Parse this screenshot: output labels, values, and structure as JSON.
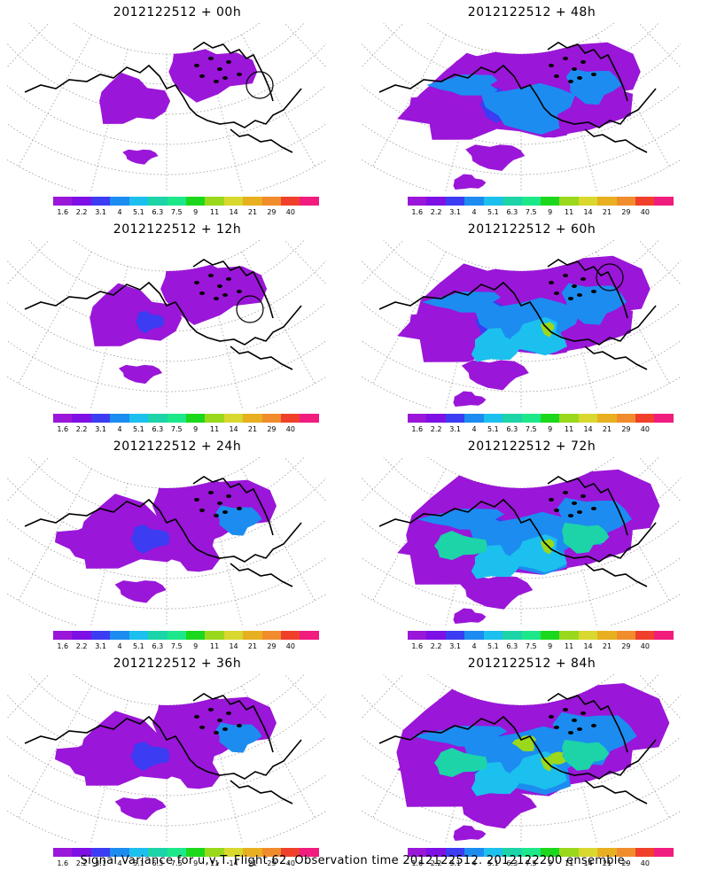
{
  "panels": [
    {
      "title": "2012122512 + 00h",
      "level": 0,
      "marker": [
        285,
        70
      ]
    },
    {
      "title": "2012122512 + 48h",
      "level": 3
    },
    {
      "title": "2012122512 + 12h",
      "level": 1,
      "marker": [
        274,
        78
      ]
    },
    {
      "title": "2012122512 + 60h",
      "level": 4,
      "marker": [
        280,
        42
      ]
    },
    {
      "title": "2012122512 + 24h",
      "level": 2
    },
    {
      "title": "2012122512 + 72h",
      "level": 5
    },
    {
      "title": "2012122512 + 36h",
      "level": 2
    },
    {
      "title": "2012122512 + 84h",
      "level": 6
    }
  ],
  "colorbar": {
    "labels": [
      "1.6",
      "2.2",
      "3.1",
      "4",
      "5.1",
      "6.3",
      "7.5",
      "9",
      "11",
      "14",
      "21",
      "29",
      "40"
    ],
    "colors": [
      "#9a16d8",
      "#7e10e6",
      "#3c3cf2",
      "#1c8cf0",
      "#1cc0ee",
      "#1cd4a8",
      "#1ce88a",
      "#1cd81c",
      "#9ad81c",
      "#d8d82e",
      "#e8b020",
      "#f08c2c",
      "#f0402c",
      "#f01c7e"
    ]
  },
  "fill_colors": [
    "#9a16d8",
    "#3c3cf2",
    "#1c8cf0",
    "#1cc0ee",
    "#1cd4a8",
    "#9ad81c"
  ],
  "footer": "Signal Variance for u,v,T. Flight 62. Observation time 2012122512. 2012122200 ensemble."
}
